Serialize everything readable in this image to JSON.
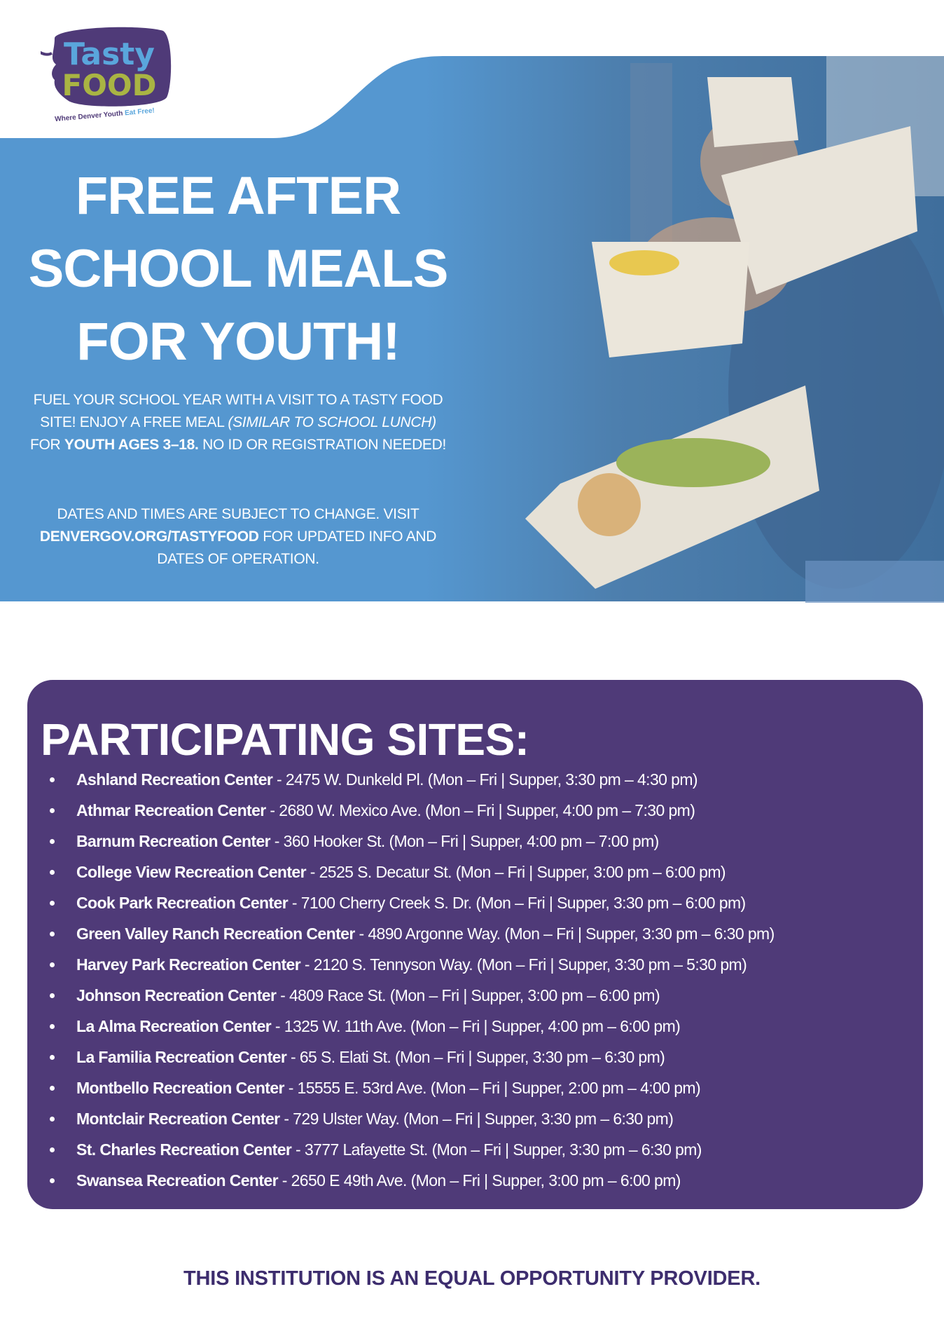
{
  "logo": {
    "line1": "Tasty",
    "line2": "FOOD",
    "tagline_a": "Where Denver Youth",
    "tagline_b": "Eat Free!"
  },
  "hero": {
    "title_lines": [
      "FREE AFTER",
      "SCHOOL MEALS",
      "FOR YOUTH!"
    ],
    "para1": {
      "a": "FUEL YOUR SCHOOL YEAR WITH A VISIT TO A TASTY FOOD SITE! ENJOY A FREE MEAL ",
      "italic": "(SIMILAR TO SCHOOL LUNCH)",
      "b": " FOR ",
      "bold": "YOUTH AGES 3–18.",
      "c": " NO ID OR REGISTRATION NEEDED!"
    },
    "para2": {
      "a": "DATES AND TIMES ARE SUBJECT TO CHANGE. VISIT ",
      "bold": "DENVERGOV.ORG/TASTYFOOD",
      "b": " FOR UPDATED INFO AND DATES OF OPERATION."
    }
  },
  "sites": {
    "heading": "PARTICIPATING SITES:",
    "items": [
      {
        "name": "Ashland Recreation Center",
        "details": " - 2475 W. Dunkeld Pl. (Mon – Fri | Supper, 3:30 pm – 4:30 pm)"
      },
      {
        "name": "Athmar Recreation Center",
        "details": " - 2680 W. Mexico Ave. (Mon – Fri | Supper, 4:00 pm – 7:30 pm)"
      },
      {
        "name": "Barnum Recreation Center",
        "details": " - 360 Hooker St. (Mon – Fri | Supper, 4:00 pm – 7:00 pm)"
      },
      {
        "name": "College View Recreation Center",
        "details": " - 2525 S. Decatur St. (Mon – Fri | Supper, 3:00 pm – 6:00 pm)"
      },
      {
        "name": "Cook Park Recreation Center",
        "details": " - 7100 Cherry Creek S. Dr. (Mon – Fri | Supper, 3:30 pm – 6:00 pm)"
      },
      {
        "name": "Green Valley Ranch Recreation Center",
        "details": " - 4890 Argonne Way. (Mon – Fri | Supper, 3:30 pm – 6:30 pm)"
      },
      {
        "name": "Harvey Park Recreation Center",
        "details": " - 2120 S. Tennyson Way. (Mon – Fri | Supper, 3:30 pm – 5:30 pm)"
      },
      {
        "name": "Johnson Recreation Center",
        "details": " - 4809 Race St. (Mon – Fri | Supper, 3:00 pm – 6:00 pm)"
      },
      {
        "name": "La Alma Recreation Center",
        "details": " - 1325 W. 11th Ave. (Mon – Fri | Supper, 4:00 pm – 6:00 pm)"
      },
      {
        "name": "La Familia Recreation Center",
        "details": " - 65 S. Elati St. (Mon – Fri | Supper, 3:30 pm – 6:30 pm)"
      },
      {
        "name": "Montbello Recreation Center",
        "details": " - 15555 E. 53rd Ave. (Mon – Fri | Supper, 2:00 pm – 4:00 pm)"
      },
      {
        "name": "Montclair Recreation Center",
        "details": " - 729 Ulster Way. (Mon – Fri | Supper, 3:30 pm – 6:30 pm)"
      },
      {
        "name": "St. Charles Recreation Center",
        "details": " - 3777 Lafayette St. (Mon – Fri | Supper, 3:30 pm – 6:30 pm)"
      },
      {
        "name": "Swansea Recreation Center",
        "details": " - 2650 E 49th Ave. (Mon – Fri | Supper, 3:00 pm – 6:00 pm)"
      }
    ]
  },
  "footer": "THIS INSTITUTION IS AN EQUAL OPPORTUNITY PROVIDER.",
  "colors": {
    "blue": "#5597d0",
    "purple": "#4f3a78",
    "footer": "#3d2d6e",
    "logo_blue": "#5aa6dc",
    "logo_green": "#a9b443"
  }
}
